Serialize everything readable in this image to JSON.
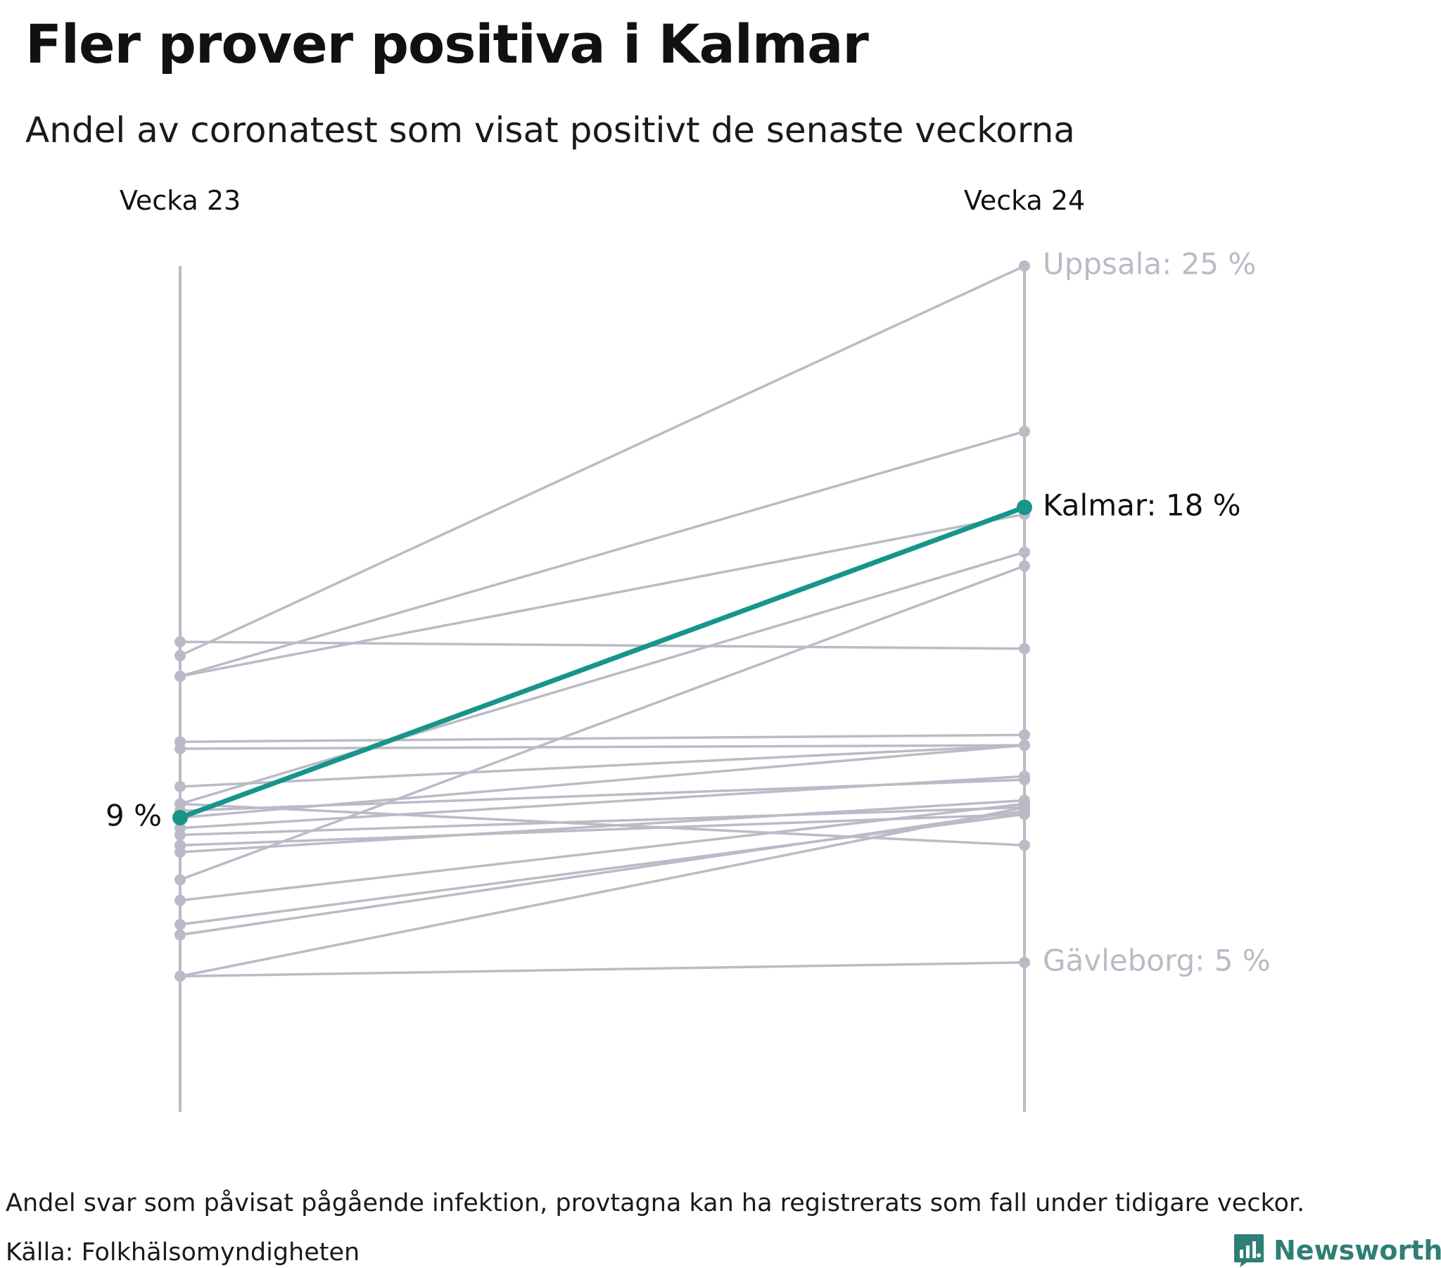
{
  "title": "Fler prover positiva i Kalmar",
  "subtitle": "Andel av coronatest som visat positivt de senaste veckorna",
  "footnote": "Andel svar som påvisat pågående infektion, provtagna kan ha registrerats som fall under tidigare veckor.",
  "source": "Källa: Folkhälsomyndigheten",
  "brand": "Newsworthy",
  "colors": {
    "highlight": "#17958a",
    "other": "#bbbac6",
    "label_muted": "#bbbac6",
    "text": "#111111",
    "brand": "#2e7f76"
  },
  "chart_data": {
    "type": "line",
    "categories": [
      "Vecka 23",
      "Vecka 24"
    ],
    "ylim": [
      0,
      28
    ],
    "unit": "%",
    "highlight": {
      "name": "Kalmar",
      "values": [
        9.0,
        18.0
      ]
    },
    "series": [
      {
        "name": "Uppsala",
        "values": [
          13.7,
          25.0
        ]
      },
      {
        "values": [
          13.1,
          20.2
        ]
      },
      {
        "values": [
          13.1,
          17.8
        ]
      },
      {
        "values": [
          14.1,
          13.9
        ]
      },
      {
        "values": [
          11.2,
          11.4
        ]
      },
      {
        "values": [
          11.0,
          11.1
        ]
      },
      {
        "values": [
          9.4,
          16.7
        ]
      },
      {
        "values": [
          9.9,
          11.1
        ]
      },
      {
        "values": [
          9.2,
          10.1
        ]
      },
      {
        "values": [
          9.4,
          8.2
        ]
      },
      {
        "values": [
          9.0,
          11.1
        ]
      },
      {
        "values": [
          8.7,
          10.2
        ]
      },
      {
        "values": [
          8.5,
          9.3
        ]
      },
      {
        "values": [
          8.2,
          9.1
        ]
      },
      {
        "values": [
          7.2,
          16.3
        ]
      },
      {
        "values": [
          8.0,
          9.5
        ]
      },
      {
        "values": [
          6.6,
          9.4
        ]
      },
      {
        "values": [
          5.9,
          9.1
        ]
      },
      {
        "values": [
          5.6,
          9.2
        ]
      },
      {
        "values": [
          4.4,
          9.3
        ]
      },
      {
        "name": "Gävleborg",
        "values": [
          4.4,
          4.8
        ]
      }
    ],
    "labels": {
      "start": "9 %",
      "top": "Uppsala: 25 %",
      "highlight": "Kalmar: 18 %",
      "bottom": "Gävleborg: 5 %"
    }
  }
}
